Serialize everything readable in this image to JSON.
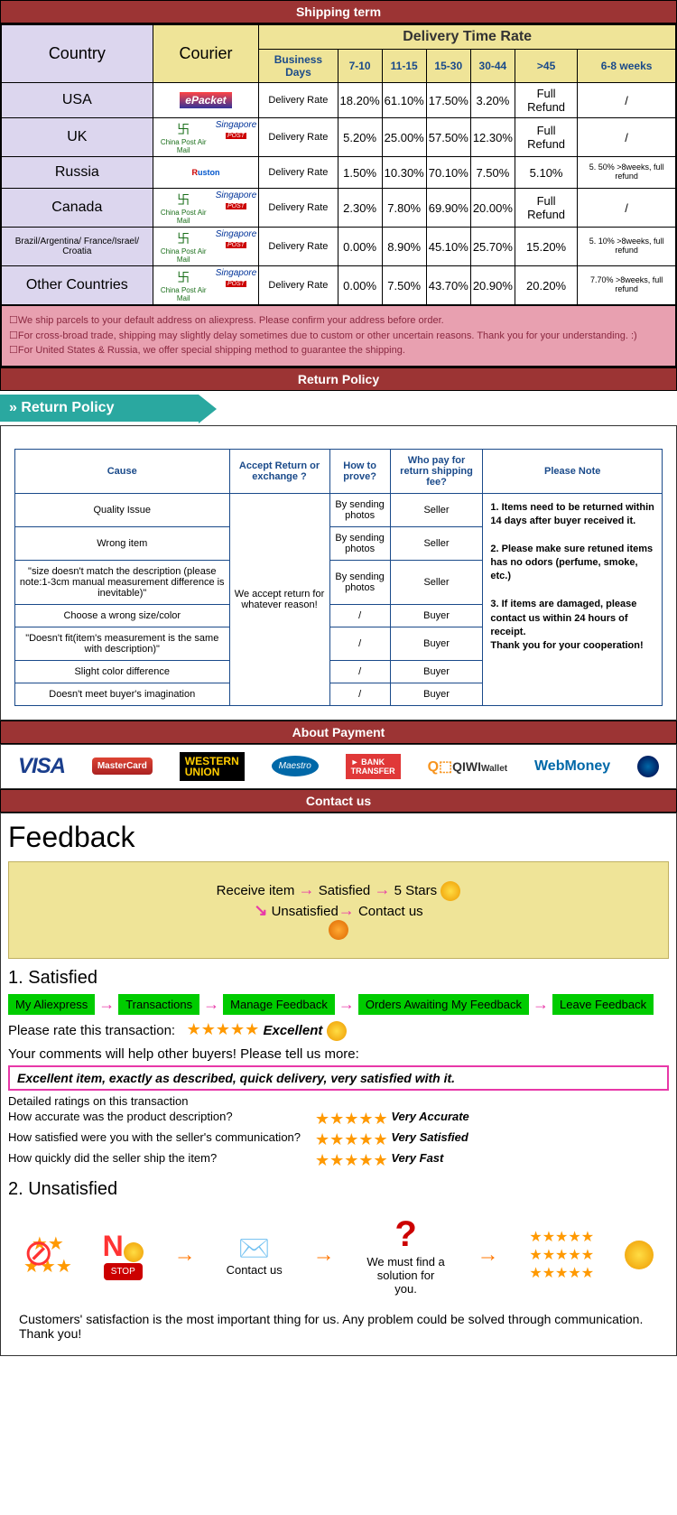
{
  "headers": {
    "shipping": "Shipping term",
    "return": "Return Policy",
    "payment": "About Payment",
    "contact": "Contact us"
  },
  "shipTable": {
    "colCountry": "Country",
    "colCourier": "Courier",
    "colDelivery": "Delivery Time Rate",
    "subCols": [
      "Business Days",
      "7-10",
      "11-15",
      "15-30",
      "30-44",
      ">45",
      "6-8 weeks"
    ],
    "rows": [
      {
        "country": "USA",
        "courier": "ePacket",
        "label": "Delivery Rate",
        "v": [
          "18.20%",
          "61.10%",
          "17.50%",
          "3.20%",
          "Full Refund",
          "/"
        ]
      },
      {
        "country": "UK",
        "courier": "cpam_sing",
        "label": "Delivery Rate",
        "v": [
          "5.20%",
          "25.00%",
          "57.50%",
          "12.30%",
          "Full Refund",
          "/"
        ]
      },
      {
        "country": "Russia",
        "courier": "ruston",
        "label": "Delivery Rate",
        "v": [
          "1.50%",
          "10.30%",
          "70.10%",
          "7.50%",
          "5.10%",
          "5. 50% >8weeks, full refund"
        ]
      },
      {
        "country": "Canada",
        "courier": "cpam_sing",
        "label": "Delivery Rate",
        "v": [
          "2.30%",
          "7.80%",
          "69.90%",
          "20.00%",
          "Full Refund",
          "/"
        ]
      },
      {
        "country": "Brazil/Argentina/ France/Israel/ Croatia",
        "courier": "cpam_sing",
        "label": "Delivery Rate",
        "v": [
          "0.00%",
          "8.90%",
          "45.10%",
          "25.70%",
          "15.20%",
          "5. 10% >8weeks, full refund"
        ],
        "small": true
      },
      {
        "country": "Other Countries",
        "courier": "cpam_sing",
        "label": "Delivery Rate",
        "v": [
          "0.00%",
          "7.50%",
          "43.70%",
          "20.90%",
          "20.20%",
          "7.70% >8weeks, full refund"
        ]
      }
    ]
  },
  "shipNotes": [
    "☐We ship parcels to your default address on aliexpress. Please confirm your address before order.",
    "☐For cross-broad trade, shipping may slightly delay sometimes due to custom or other uncertain reasons. Thank you for your understanding. :)",
    "☐For United States & Russia, we offer special shipping method to guarantee the shipping."
  ],
  "returnBanner": "Return Policy",
  "returnTable": {
    "cols": [
      "Cause",
      "Accept Return or exchange ?",
      "How to prove?",
      "Who pay for return shipping fee?",
      "Please Note"
    ],
    "acceptText": "We accept return for whatever reason!",
    "rows": [
      {
        "cause": "Quality Issue",
        "prove": "By sending photos",
        "payer": "Seller"
      },
      {
        "cause": "Wrong item",
        "prove": "By sending photos",
        "payer": "Seller"
      },
      {
        "cause": "\"size doesn't match the description (please note:1-3cm manual measurement difference is inevitable)\"",
        "prove": "By sending photos",
        "payer": "Seller"
      },
      {
        "cause": "Choose a wrong size/color",
        "prove": "/",
        "payer": "Buyer"
      },
      {
        "cause": "\"Doesn't fit(item's measurement is the same with description)\"",
        "prove": "/",
        "payer": "Buyer"
      },
      {
        "cause": "Slight color difference",
        "prove": "/",
        "payer": "Buyer"
      },
      {
        "cause": "Doesn't meet buyer's imagination",
        "prove": "/",
        "payer": "Buyer"
      }
    ],
    "note": "1. Items need to be returned within 14 days after buyer received it.\n\n2. Please make sure retuned items has no odors (perfume, smoke, etc.)\n\n3. If items are damaged, please contact us within 24 hours of receipt.\nThank you for your cooperation!"
  },
  "payment": [
    "VISA",
    "MasterCard",
    "WESTERN UNION",
    "Maestro",
    "BANK TRANSFER",
    "QIWI Wallet",
    "WebMoney"
  ],
  "feedback": {
    "title": "Feedback",
    "flow1": {
      "a": "Receive item",
      "b": "Satisfied",
      "c": "5 Stars"
    },
    "flow2": {
      "a": "Unsatisfied",
      "b": "Contact us"
    },
    "sat": "1. Satisfied",
    "steps": [
      "My Aliexpress",
      "Transactions",
      "Manage Feedback",
      "Orders Awaiting My Feedback",
      "Leave Feedback"
    ],
    "rateLabel": "Please rate this transaction:",
    "excellent": "Excellent",
    "commentsLabel": "Your comments will help other buyers! Please tell us more:",
    "commentText": "Excellent item, exactly as described, quick delivery, very satisfied with it.",
    "detailLabel": "Detailed ratings on this transaction",
    "q1": "How accurate was the product description?",
    "q2": "How satisfied were you with the seller's communication?",
    "q3": "How quickly did the seller ship the item?",
    "a1": "Very Accurate",
    "a2": "Very Satisfied",
    "a3": "Very Fast",
    "unsat": "2. Unsatisfied",
    "no": "N",
    "stop": "STOP",
    "contactUs": "Contact us",
    "solution": "We must find a solution for you.",
    "footer": "Customers' satisfaction is the most important thing for us. Any problem could be solved through communication. Thank you!"
  }
}
